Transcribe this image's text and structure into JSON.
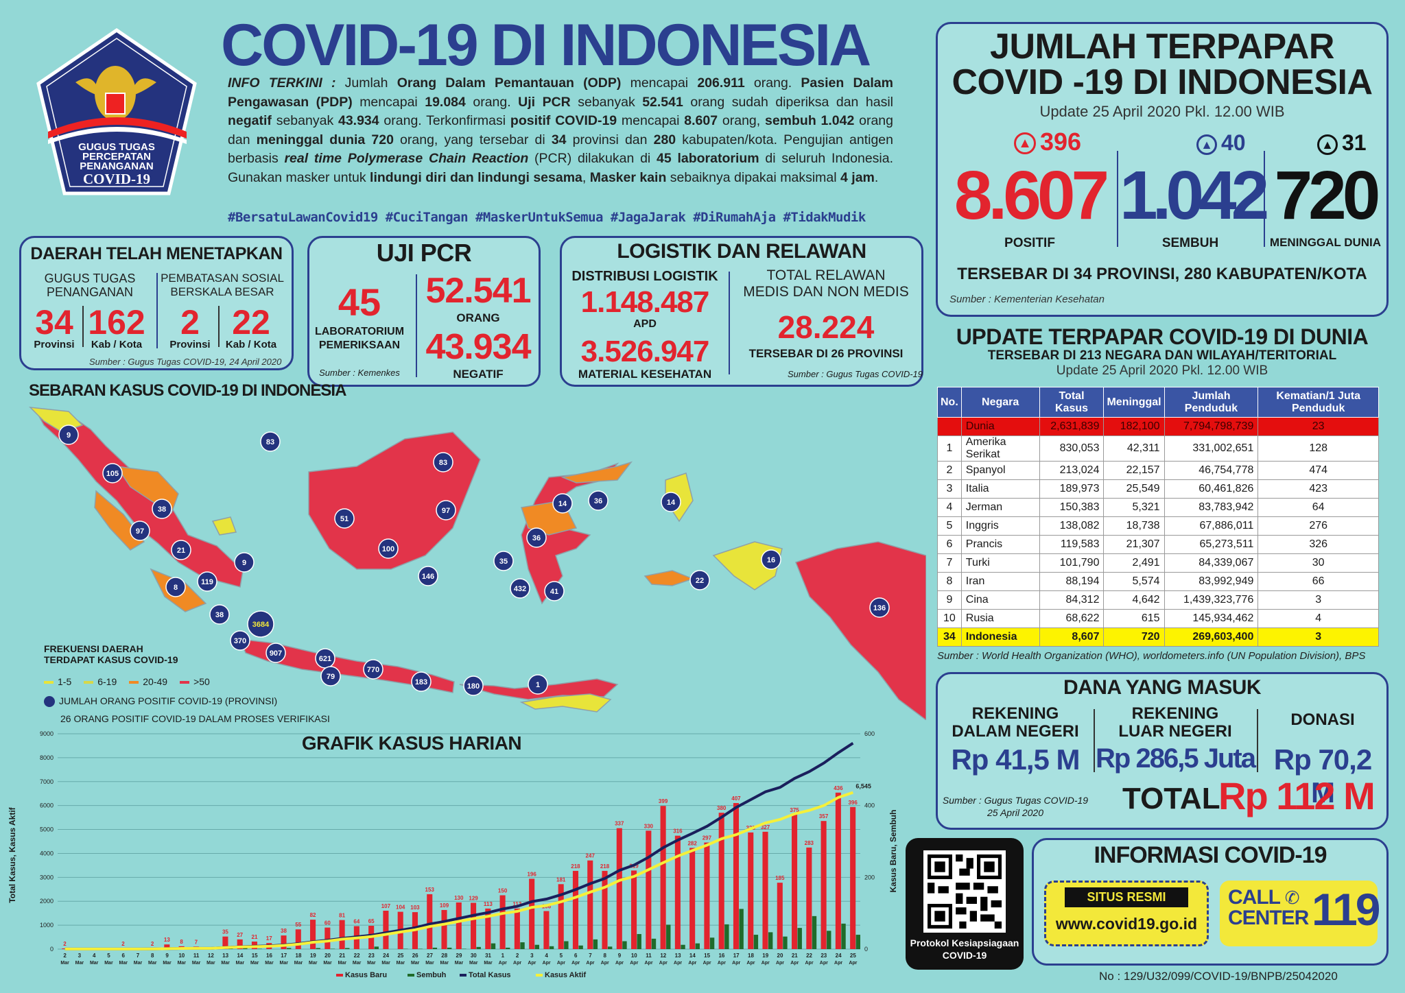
{
  "logo": {
    "line1": "GUGUS TUGAS",
    "line2": "PERCEPATAN",
    "line3": "PENANGANAN",
    "line4": "COVID-19"
  },
  "title": "COVID-19 DI INDONESIA",
  "info": {
    "p1": "INFO TERKINI :",
    "p2": " Jumlah ",
    "p3": "Orang Dalam Pemantauan (ODP)",
    "p4": " mencapai ",
    "p5": "206.911",
    "p6": " orang. ",
    "p7": "Pasien Dalam Pengawasan (PDP)",
    "p8": " mencapai ",
    "p9": "19.084",
    "p10": " orang. ",
    "p11": "Uji PCR",
    "p12": " sebanyak ",
    "p13": "52.541",
    "p14": " orang sudah diperiksa dan hasil ",
    "p15": "negatif",
    "p16": " sebanyak ",
    "p17": "43.934",
    "p18": " orang. Terkonfirmasi ",
    "p19": "positif COVID-19",
    "p20": " mencapai ",
    "p21": "8.607",
    "p22": " orang, ",
    "p23": "sembuh 1.042",
    "p24": " orang dan ",
    "p25": "meninggal dunia 720",
    "p26": " orang, yang tersebar di ",
    "p27": "34",
    "p28": " provinsi dan ",
    "p29": "280",
    "p30": " kabupaten/kota. Pengujian antigen berbasis ",
    "p31": "real time Polymerase Chain Reaction",
    "p32": " (PCR) dilakukan di ",
    "p33": "45 laboratorium",
    "p34": " di seluruh Indonesia. Gunakan masker untuk ",
    "p35": "lindungi diri dan lindungi sesama",
    "p36": ", ",
    "p37": "Masker kain",
    "p38": " sebaiknya dipakai maksimal ",
    "p39": "4 jam",
    "p40": "."
  },
  "hashtags": "#BersatuLawanCovid19 #CuciTangan #MaskerUntukSemua #JagaJarak #DiRumahAja #TidakMudik",
  "daerah": {
    "title": "DAERAH TELAH MENETAPKAN",
    "g1": "GUGUS TUGAS",
    "g2": "PENANGANAN",
    "p1": "PEMBATASAN SOSIAL",
    "p2": "BERSKALA BESAR",
    "n1": "34",
    "n2": "162",
    "n3": "2",
    "n4": "22",
    "l1": "Provinsi",
    "l2": "Kab / Kota",
    "l3": "Provinsi",
    "l4": "Kab / Kota",
    "src": "Sumber : Gugus Tugas COVID-19, 24 April 2020"
  },
  "pcr": {
    "title": "UJI PCR",
    "lab": "45",
    "lab1": "LABORATORIUM",
    "lab2": "PEMERIKSAAN",
    "src": "Sumber : Kemenkes",
    "orang": "52.541",
    "orang_l": "ORANG",
    "neg": "43.934",
    "neg_l": "NEGATIF"
  },
  "logistik": {
    "title": "LOGISTIK DAN RELAWAN",
    "dist": "DISTRIBUSI LOGISTIK",
    "apd": "1.148.487",
    "apd_l": "APD",
    "mat": "3.526.947",
    "mat_l": "MATERIAL KESEHATAN",
    "rel1": "TOTAL RELAWAN",
    "rel2": "MEDIS DAN NON MEDIS",
    "rel": "28.224",
    "rel_l": "TERSEBAR DI 26 PROVINSI",
    "src": "Sumber : Gugus Tugas COVID-19"
  },
  "jumlah": {
    "t1": "JUMLAH TERPAPAR",
    "t2": "COVID -19 DI INDONESIA",
    "update": "Update 25 April 2020 Pkl. 12.00 WIB",
    "pos_inc": "396",
    "pos": "8.607",
    "pos_l": "POSITIF",
    "sem_inc": "40",
    "sem": "1.042",
    "sem_l": "SEMBUH",
    "men_inc": "31",
    "men": "720",
    "men_l": "MENINGGAL DUNIA",
    "spread": "TERSEBAR DI 34 PROVINSI, 280 KABUPATEN/KOTA",
    "src": "Sumber : Kementerian Kesehatan"
  },
  "dunia": {
    "t1": "UPDATE TERPAPAR COVID-19 DI DUNIA",
    "t2": "TERSEBAR DI 213 NEGARA DAN WILAYAH/TERITORIAL",
    "t3": "Update 25 April 2020 Pkl. 12.00 WIB",
    "headers": [
      "No.",
      "Negara",
      "Total Kasus",
      "Meninggal",
      "Jumlah Penduduk",
      "Kematian/1 Juta Penduduk"
    ],
    "rows": [
      [
        "",
        "Dunia",
        "2,631,839",
        "182,100",
        "7,794,798,739",
        "23"
      ],
      [
        "1",
        "Amerika Serikat",
        "830,053",
        "42,311",
        "331,002,651",
        "128"
      ],
      [
        "2",
        "Spanyol",
        "213,024",
        "22,157",
        "46,754,778",
        "474"
      ],
      [
        "3",
        "Italia",
        "189,973",
        "25,549",
        "60,461,826",
        "423"
      ],
      [
        "4",
        "Jerman",
        "150,383",
        "5,321",
        "83,783,942",
        "64"
      ],
      [
        "5",
        "Inggris",
        "138,082",
        "18,738",
        "67,886,011",
        "276"
      ],
      [
        "6",
        "Prancis",
        "119,583",
        "21,307",
        "65,273,511",
        "326"
      ],
      [
        "7",
        "Turki",
        "101,790",
        "2,491",
        "84,339,067",
        "30"
      ],
      [
        "8",
        "Iran",
        "88,194",
        "5,574",
        "83,992,949",
        "66"
      ],
      [
        "9",
        "Cina",
        "84,312",
        "4,642",
        "1,439,323,776",
        "3"
      ],
      [
        "10",
        "Rusia",
        "68,622",
        "615",
        "145,934,462",
        "4"
      ],
      [
        "34",
        "Indonesia",
        "8,607",
        "720",
        "269,603,400",
        "3"
      ]
    ],
    "src": "Sumber : World Health Organization (WHO), worldometers.info (UN Population Division), BPS"
  },
  "dana": {
    "title": "DANA YANG MASUK",
    "r1a": "REKENING",
    "r1b": "DALAM NEGERI",
    "v1": "Rp 41,5 M",
    "r2a": "REKENING",
    "r2b": "LUAR NEGERI",
    "v2": "Rp 286,5 Juta",
    "r3": "DONASI",
    "v3": "Rp 70,2 M",
    "src1": "Sumber : Gugus Tugas COVID-19",
    "src2": "25 April 2020",
    "total_l": "TOTAL",
    "total": "Rp 112 M"
  },
  "qr": {
    "l1": "Protokol Kesiapsiagaan",
    "l2": "COVID-19"
  },
  "informasi": {
    "title": "INFORMASI COVID-19",
    "situs": "SITUS RESMI",
    "url": "www.covid19.go.id",
    "call1": "CALL",
    "call2": "CENTER",
    "num": "119"
  },
  "docno": "No : 129/U32/099/COVID-19/BNPB/25042020",
  "map": {
    "title": "SEBARAN KASUS COVID-19 DI INDONESIA",
    "legend_title1": "FREKUENSI DAERAH",
    "legend_title2": "TERDAPAT KASUS COVID-19",
    "legend": [
      "1-5",
      "6-19",
      "20-49",
      ">50"
    ],
    "legend_colors": [
      "#e8e43a",
      "#d6d84a",
      "#f08a24",
      "#e2344a"
    ],
    "positif_label": "JUMLAH ORANG POSITIF COVID-19 (PROVINSI)",
    "verif_label": "26 ORANG POSITIF COVID-19 DALAM PROSES VERIFIKASI",
    "markers": [
      "9",
      "83",
      "105",
      "38",
      "97",
      "21",
      "9",
      "119",
      "8",
      "38",
      "3684",
      "370",
      "907",
      "621",
      "79",
      "770",
      "183",
      "180",
      "1",
      "51",
      "100",
      "146",
      "83",
      "97",
      "14",
      "36",
      "36",
      "35",
      "432",
      "41",
      "14",
      "16",
      "22",
      "136"
    ]
  },
  "chart": {
    "title": "GRAFIK KASUS HARIAN",
    "ylabel_left": "Total Kasus, Kasus Aktif",
    "ylabel_right": "Kasus Baru, Sembuh",
    "legend": [
      "Kasus Baru",
      "Sembuh",
      "Total Kasus",
      "Kasus Aktif"
    ]
  },
  "chart_data": {
    "type": "bar",
    "categories": [
      "2 Mar",
      "3 Mar",
      "4 Mar",
      "5 Mar",
      "6 Mar",
      "7 Mar",
      "8 Mar",
      "9 Mar",
      "10 Mar",
      "11 Mar",
      "12 Mar",
      "13 Mar",
      "14 Mar",
      "15 Mar",
      "16 Mar",
      "17 Mar",
      "18 Mar",
      "19 Mar",
      "20 Mar",
      "21 Mar",
      "22 Mar",
      "23 Mar",
      "24 Mar",
      "25 Mar",
      "26 Mar",
      "27 Mar",
      "28 Mar",
      "29 Mar",
      "30 Mar",
      "31 Mar",
      "1 Apr",
      "2 Apr",
      "3 Apr",
      "4 Apr",
      "5 Apr",
      "6 Apr",
      "7 Apr",
      "8 Apr",
      "9 Apr",
      "10 Apr",
      "11 Apr",
      "12 Apr",
      "13 Apr",
      "14 Apr",
      "15 Apr",
      "16 Apr",
      "17 Apr",
      "18 Apr",
      "19 Apr",
      "20 Apr",
      "21 Apr",
      "22 Apr",
      "23 Apr",
      "24 Apr",
      "25 Apr"
    ],
    "series": [
      {
        "name": "Kasus Baru",
        "values": [
          2,
          0,
          0,
          0,
          2,
          0,
          2,
          13,
          8,
          7,
          0,
          35,
          27,
          21,
          17,
          38,
          55,
          82,
          60,
          81,
          64,
          65,
          107,
          104,
          103,
          153,
          109,
          130,
          129,
          113,
          150,
          113,
          196,
          106,
          181,
          218,
          247,
          218,
          337,
          219,
          330,
          399,
          316,
          282,
          297,
          380,
          407,
          325,
          327,
          185,
          375,
          283,
          357,
          436,
          396
        ]
      },
      {
        "name": "Sembuh",
        "values": [
          0,
          0,
          0,
          0,
          0,
          0,
          0,
          0,
          0,
          0,
          0,
          3,
          5,
          1,
          0,
          3,
          0,
          3,
          1,
          3,
          0,
          7,
          0,
          1,
          1,
          4,
          4,
          1,
          6,
          16,
          4,
          19,
          12,
          8,
          22,
          10,
          27,
          7,
          22,
          42,
          29,
          68,
          12,
          16,
          32,
          69,
          112,
          40,
          47,
          35,
          59,
          92,
          51,
          71,
          40
        ]
      },
      {
        "name": "Total Kasus",
        "values": [
          2,
          2,
          2,
          2,
          4,
          4,
          6,
          19,
          27,
          34,
          34,
          69,
          96,
          117,
          134,
          172,
          227,
          309,
          369,
          450,
          514,
          579,
          686,
          790,
          893,
          1046,
          1155,
          1285,
          1414,
          1528,
          1677,
          1790,
          1986,
          2092,
          2273,
          2491,
          2738,
          2956,
          3293,
          3512,
          3842,
          4241,
          4557,
          4839,
          5136,
          5516,
          5923,
          6248,
          6575,
          6760,
          7135,
          7418,
          7775,
          8211,
          8607
        ]
      },
      {
        "name": "Kasus Aktif",
        "values": [
          2,
          2,
          2,
          2,
          4,
          4,
          6,
          19,
          27,
          34,
          34,
          66,
          88,
          105,
          120,
          155,
          205,
          286,
          337,
          415,
          466,
          522,
          617,
          716,
          807,
          945,
          1043,
          1161,
          1273,
          1369,
          1493,
          1579,
          1745,
          1823,
          1979,
          2166,
          2384,
          2585,
          2873,
          3038,
          3323,
          3614,
          3889,
          4121,
          4346,
          4614,
          4785,
          5033,
          5272,
          5418,
          5653,
          5798,
          5999,
          6340,
          6545
        ]
      }
    ],
    "y_left_max": 9000,
    "y_right_max": 600,
    "annotation": "6,545"
  }
}
